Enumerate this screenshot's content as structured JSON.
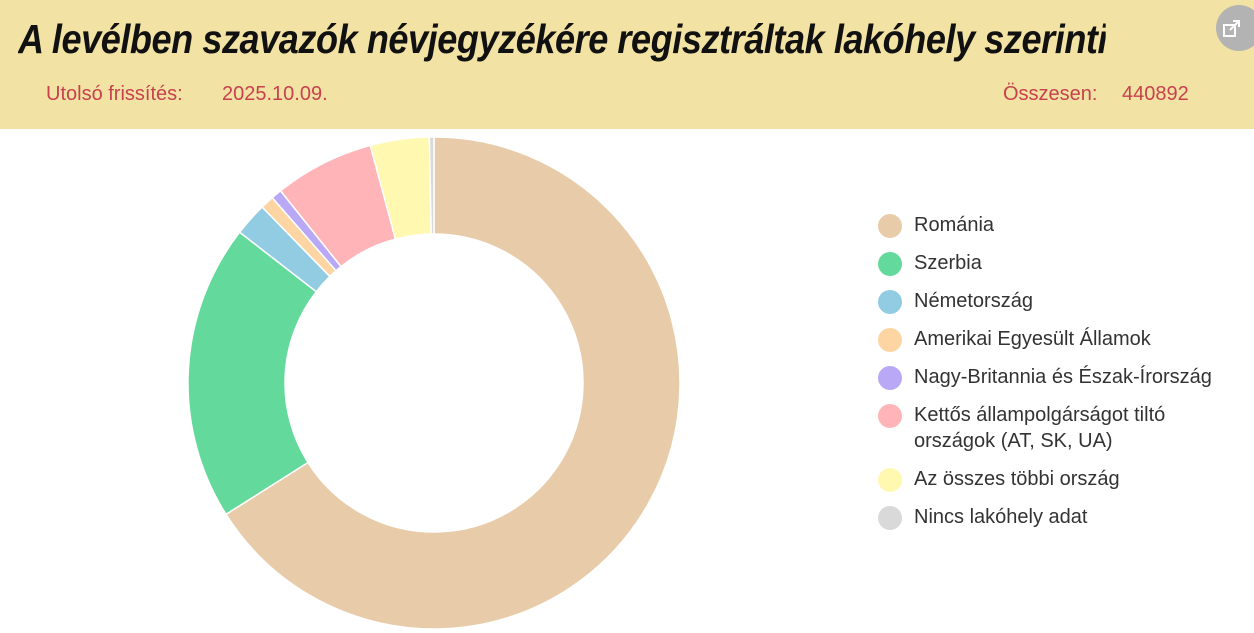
{
  "header": {
    "title": "A levélben szavazók névjegyzékére regisztráltak lakóhely szerinti eloszlása",
    "updated_label": "Utolsó frissítés:",
    "updated_value": "2025.10.09.",
    "total_label": "Összesen:",
    "total_value": "440892",
    "share_icon": "share-icon"
  },
  "chart_data": {
    "type": "pie",
    "donut": true,
    "legend_position": "right",
    "series": [
      {
        "name": "Románia",
        "value": 66.5,
        "color": "#e8cba8"
      },
      {
        "name": "Szerbia",
        "value": 19.6,
        "color": "#64d99c"
      },
      {
        "name": "Németország",
        "value": 2.2,
        "color": "#92cce3"
      },
      {
        "name": "Amerikai Egyesült Államok",
        "value": 0.9,
        "color": "#fdd5a3"
      },
      {
        "name": "Nagy-Britannia és Észak-Írország",
        "value": 0.7,
        "color": "#b9a8f5"
      },
      {
        "name": "Kettős állampolgárságot tiltó országok (AT, SK, UA)",
        "value": 6.6,
        "color": "#ffb5b8"
      },
      {
        "name": "Az összes többi ország",
        "value": 3.9,
        "color": "#fff8b0"
      },
      {
        "name": "Nincs lakóhely adat",
        "value": 0.3,
        "color": "#d9d9d9"
      }
    ]
  }
}
